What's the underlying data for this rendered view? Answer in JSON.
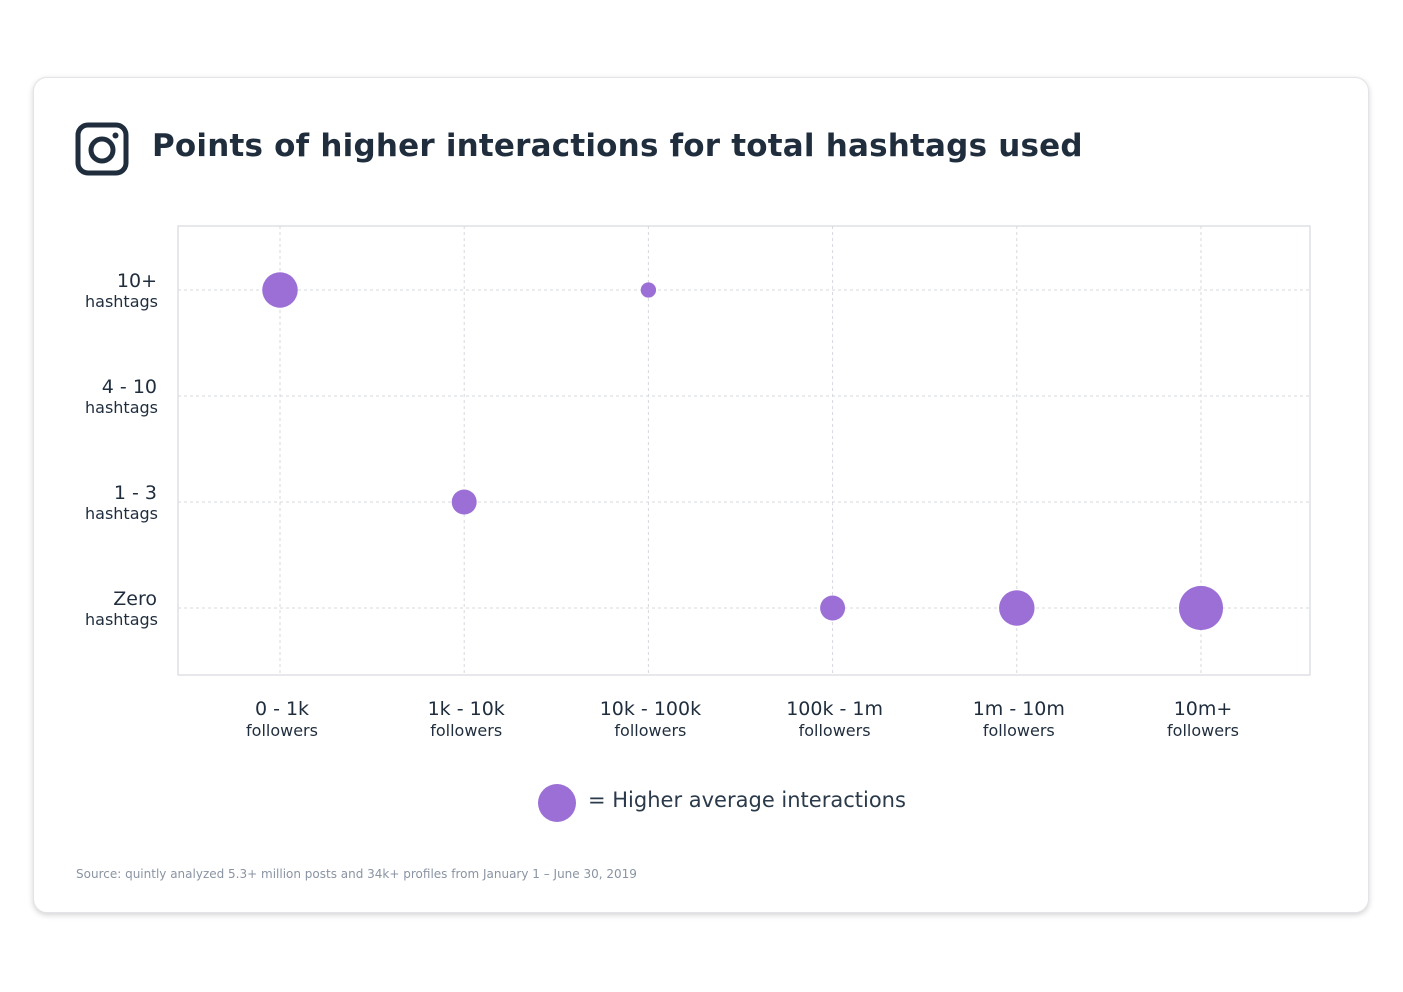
{
  "header": {
    "title": "Points of higher interactions for total hashtags used",
    "logo_icon": "instagram-icon"
  },
  "legend": {
    "label": "= Higher average interactions"
  },
  "footer": {
    "source": "Source: quintly analyzed 5.3+ million posts and 34k+ profiles from January 1 – June 30, 2019"
  },
  "colors": {
    "accent": "#9b6fd6",
    "text_dark": "#1f2d3d",
    "grid": "#d6d9de"
  },
  "chart_data": {
    "type": "scatter",
    "title": "Points of higher interactions for total hashtags used",
    "x_categories": [
      {
        "top": "0 - 1k",
        "bottom": "followers"
      },
      {
        "top": "1k - 10k",
        "bottom": "followers"
      },
      {
        "top": "10k - 100k",
        "bottom": "followers"
      },
      {
        "top": "100k - 1m",
        "bottom": "followers"
      },
      {
        "top": "1m - 10m",
        "bottom": "followers"
      },
      {
        "top": "10m+",
        "bottom": "followers"
      }
    ],
    "y_categories": [
      {
        "top": "10+",
        "bottom": "hashtags"
      },
      {
        "top": "4 - 10",
        "bottom": "hashtags"
      },
      {
        "top": "1 - 3",
        "bottom": "hashtags"
      },
      {
        "top": "Zero",
        "bottom": "hashtags"
      }
    ],
    "points": [
      {
        "x": "0 - 1k",
        "y": "10+",
        "size": 0.74
      },
      {
        "x": "10k - 100k",
        "y": "10+",
        "size": 0.32
      },
      {
        "x": "1k - 10k",
        "y": "1 - 3",
        "size": 0.52
      },
      {
        "x": "100k - 1m",
        "y": "Zero",
        "size": 0.52
      },
      {
        "x": "1m - 10m",
        "y": "Zero",
        "size": 0.74
      },
      {
        "x": "10m+",
        "y": "Zero",
        "size": 0.92
      }
    ],
    "grid": true,
    "legend_position": "bottom-center"
  }
}
